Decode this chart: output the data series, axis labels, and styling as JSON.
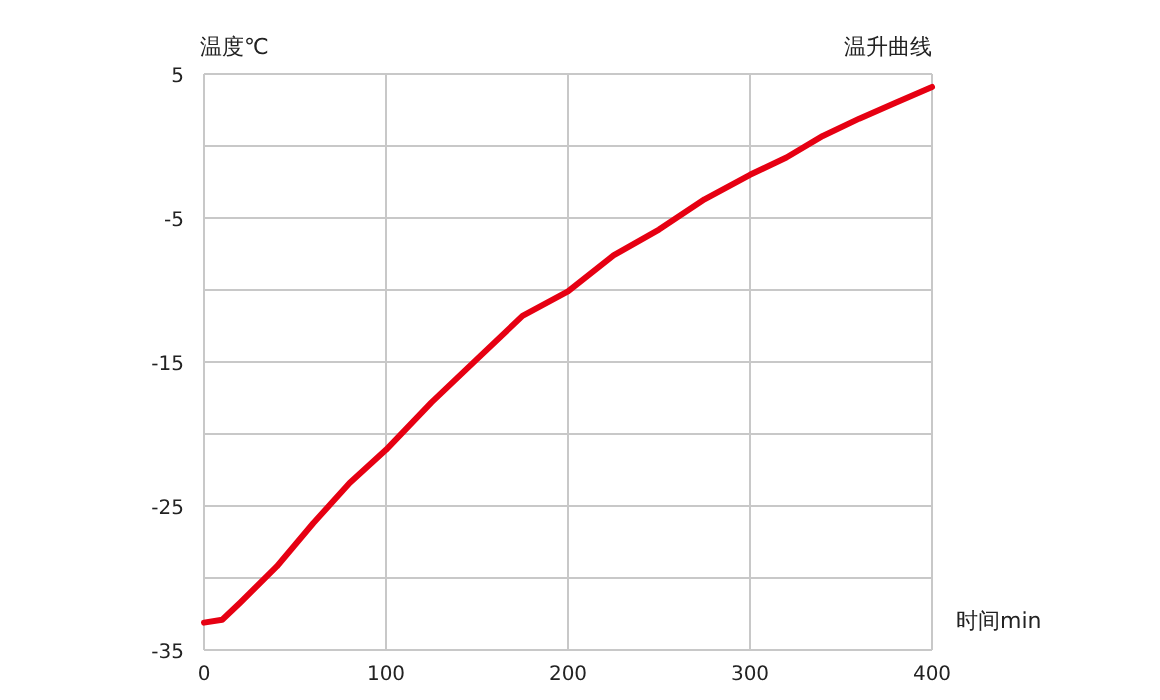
{
  "chart_data": {
    "type": "line",
    "title": "温升曲线",
    "xlabel": "时间min",
    "ylabel": "温度℃",
    "x": [
      0,
      10,
      20,
      40,
      60,
      80,
      100,
      125,
      150,
      175,
      200,
      225,
      250,
      275,
      300,
      320,
      340,
      360,
      380,
      400
    ],
    "series": [
      {
        "color": "#e60012",
        "values": [
          -33.1,
          -32.9,
          -31.7,
          -29.2,
          -26.2,
          -23.4,
          -21.1,
          -17.8,
          -14.8,
          -11.8,
          -10.1,
          -7.6,
          -5.8,
          -3.7,
          -2.0,
          -0.8,
          0.7,
          1.9,
          3.0,
          4.1
        ]
      }
    ],
    "xlim": [
      0,
      400
    ],
    "xticks": [
      0,
      100,
      200,
      300,
      400
    ],
    "ylim": [
      -35,
      5
    ],
    "yticks": [
      5,
      {
        "value": 0,
        "label": null
      },
      -5,
      {
        "value": -10,
        "label": null
      },
      -15,
      {
        "value": -20,
        "label": null
      },
      -25,
      {
        "value": -30,
        "label": null
      },
      -35
    ],
    "grid": true,
    "marker": "none",
    "line_style": "solid"
  }
}
